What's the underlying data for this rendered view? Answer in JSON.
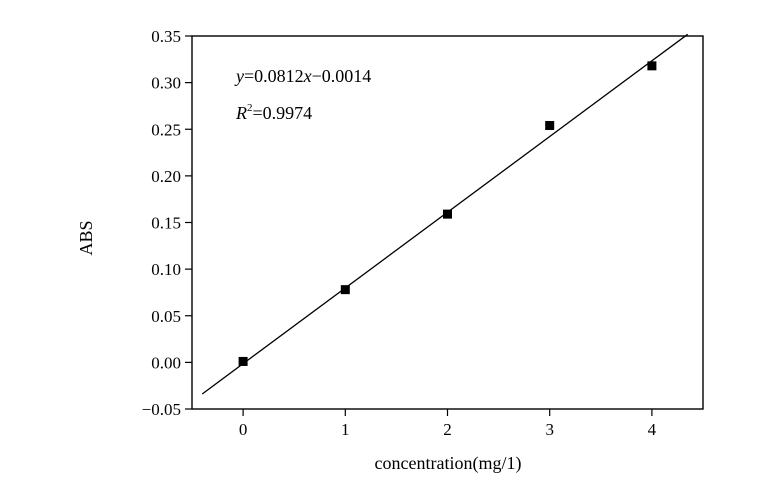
{
  "chart_data": {
    "type": "scatter",
    "xlabel": "concentration(mg/1)",
    "ylabel": "ABS",
    "xlim": [
      -0.5,
      4.5
    ],
    "ylim": [
      -0.05,
      0.35
    ],
    "xticks": [
      0,
      1,
      2,
      3,
      4
    ],
    "xtick_labels": [
      "0",
      "1",
      "2",
      "3",
      "4"
    ],
    "yticks": [
      -0.05,
      0.0,
      0.05,
      0.1,
      0.15,
      0.2,
      0.25,
      0.3,
      0.35
    ],
    "ytick_labels": [
      "−0.05",
      "0.00",
      "0.05",
      "0.10",
      "0.15",
      "0.20",
      "0.25",
      "0.30",
      "0.35"
    ],
    "grid": false,
    "series": [
      {
        "type": "scatter",
        "marker": "square",
        "color": "#000000",
        "x": [
          0,
          1,
          2,
          3,
          4
        ],
        "y": [
          0.001,
          0.078,
          0.159,
          0.254,
          0.318
        ]
      }
    ],
    "fit_line": {
      "slope": 0.0812,
      "intercept": -0.0014,
      "x_range": [
        -0.4,
        4.35
      ],
      "color": "#000000"
    },
    "annotations": {
      "equation": {
        "y_var": "y",
        "equals_a": "=0.0812",
        "x_var": "x",
        "rest": "−0.0014"
      },
      "r_squared": {
        "r_var": "R",
        "exponent": "2",
        "value": "=0.9974"
      }
    }
  }
}
